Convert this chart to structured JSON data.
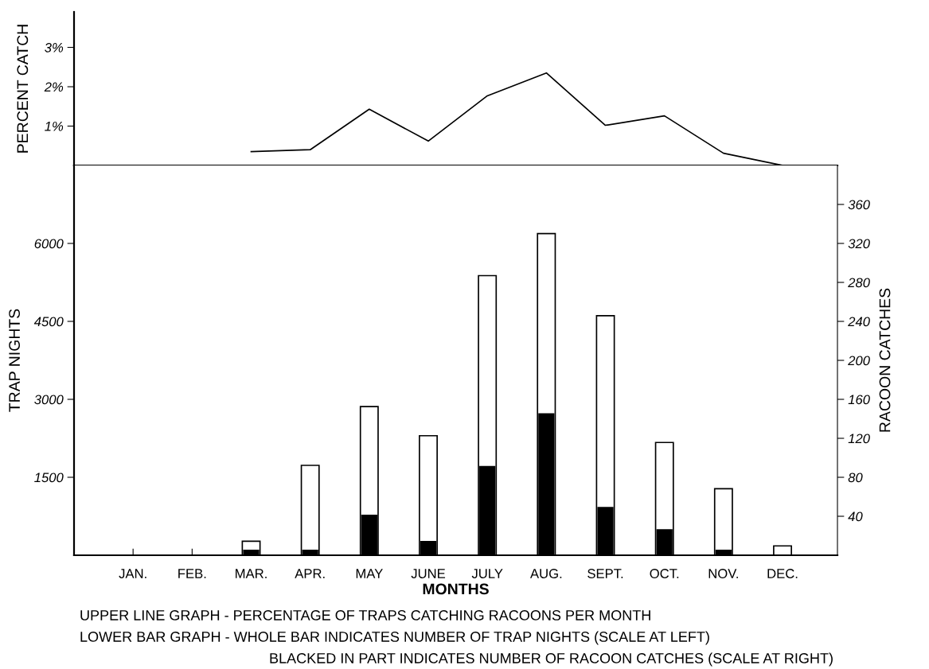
{
  "chart_data": [
    {
      "type": "line",
      "ylabel": "PERCENT CATCH",
      "categories": [
        null,
        null,
        null,
        null,
        null,
        null,
        null,
        null,
        null,
        null,
        null,
        null
      ],
      "values": [
        null,
        null,
        0.35,
        0.4,
        1.43,
        0.62,
        1.77,
        2.35,
        1.02,
        1.26,
        0.31,
        0
      ],
      "color": "#000000",
      "ylim": [
        0,
        3.9
      ],
      "yticks": [
        {
          "value": 1,
          "label": "1%"
        },
        {
          "value": 2,
          "label": "2%"
        },
        {
          "value": 3,
          "label": "3%"
        }
      ],
      "tick_labels": "y",
      "grid": false,
      "marker": "none",
      "line_style": "solid"
    },
    {
      "type": "bar",
      "xlabel": "MONTHS",
      "ylabel": "TRAP NIGHTS",
      "y2label": "RACOON CATCHES",
      "categories": [
        "JAN.",
        "FEB.",
        "MAR.",
        "APR.",
        "MAY",
        "JUNE",
        "JULY",
        "AUG.",
        "SEPT.",
        "OCT.",
        "NOV.",
        "DEC."
      ],
      "series": [
        {
          "color": "#ffffff",
          "values": [
            0,
            0,
            270,
            1730,
            2860,
            2300,
            5380,
            6190,
            4610,
            2170,
            1280,
            180
          ]
        },
        {
          "color": "#000000",
          "axis": "y2",
          "values": [
            0,
            0,
            5,
            5,
            41,
            14,
            91,
            145,
            49,
            26,
            5,
            0
          ]
        }
      ],
      "ylim": [
        0,
        7500
      ],
      "yticks": [
        1500,
        3000,
        4500,
        6000
      ],
      "y2lim": [
        0,
        400
      ],
      "y2ticks": [
        40,
        80,
        120,
        160,
        200,
        240,
        280,
        320,
        360
      ],
      "grid": false,
      "annotations": [
        "UPPER LINE GRAPH - PERCENTAGE OF TRAPS CATCHING RACOONS PER MONTH",
        "LOWER BAR GRAPH - WHOLE BAR INDICATES NUMBER OF TRAP NIGHTS (SCALE AT LEFT)",
        "BLACKED IN PART INDICATES NUMBER OF RACOON CATCHES (SCALE AT RIGHT)"
      ]
    }
  ]
}
